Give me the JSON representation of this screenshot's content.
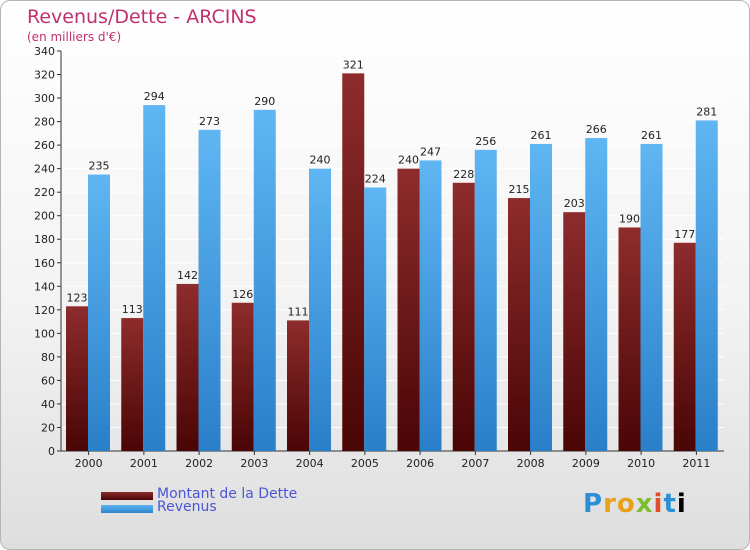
{
  "chart_data": {
    "type": "bar",
    "title": "Revenus/Dette - ARCINS",
    "subtitle": "(en milliers d'€)",
    "categories": [
      "2000",
      "2001",
      "2002",
      "2003",
      "2004",
      "2005",
      "2006",
      "2007",
      "2008",
      "2009",
      "2010",
      "2011"
    ],
    "series": [
      {
        "name": "Montant de la Dette",
        "color": "#7a1a1a",
        "values": [
          123,
          113,
          142,
          126,
          111,
          321,
          240,
          228,
          215,
          203,
          190,
          177
        ]
      },
      {
        "name": "Revenus",
        "color": "#4aa3e6",
        "values": [
          235,
          294,
          273,
          290,
          240,
          224,
          247,
          256,
          261,
          266,
          261,
          281
        ]
      }
    ],
    "ylim": [
      0,
      340
    ],
    "yticks": [
      0,
      20,
      40,
      60,
      80,
      100,
      120,
      140,
      160,
      180,
      200,
      220,
      240,
      260,
      280,
      300,
      320,
      340
    ],
    "grid": true,
    "legend": "bottom-left"
  },
  "logo": {
    "letters": [
      "P",
      "r",
      "o",
      "x",
      "i",
      "t",
      "i"
    ]
  }
}
